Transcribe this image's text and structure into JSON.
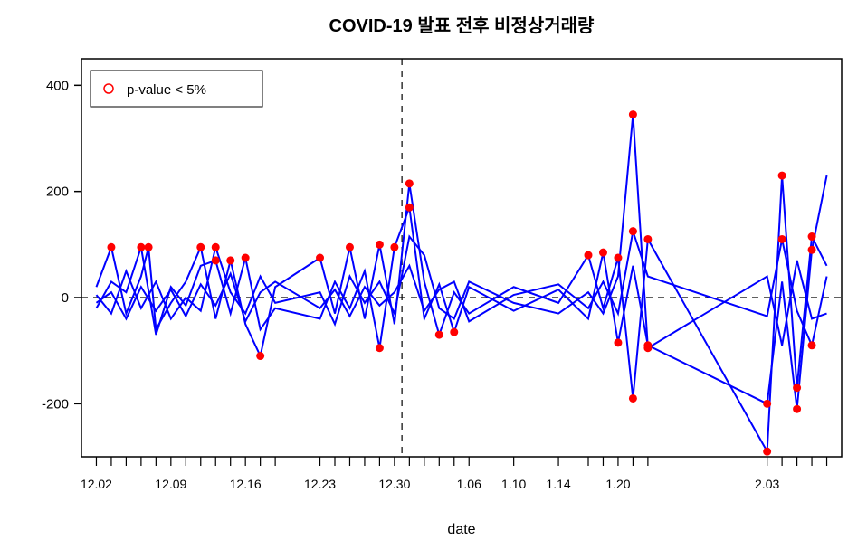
{
  "chart": {
    "type": "line",
    "title": "COVID-19 발표 전후 비정상거래량",
    "title_fontsize": 20,
    "title_fontweight": "bold",
    "xlabel": "date",
    "label_fontsize": 16,
    "background_color": "#ffffff",
    "plot_border_color": "#000000",
    "line_color": "#0000ff",
    "line_width": 2,
    "marker_color_fill": "#ff0000",
    "marker_color_stroke": "#ff0000",
    "marker_radius": 4,
    "dashed_line_color": "#000000",
    "ylim": [
      -300,
      450
    ],
    "ytick_values": [
      -200,
      0,
      200,
      400
    ],
    "x_tick_labels": [
      "12.02",
      "12.09",
      "12.16",
      "12.23",
      "12.30",
      "1.06",
      "1.10",
      "1.14",
      "1.20",
      "2.03"
    ],
    "x_tick_positions": [
      0,
      5,
      10,
      15,
      20,
      25,
      28,
      31,
      35,
      45
    ],
    "x_minor_ticks": [
      0,
      1,
      2,
      3,
      4,
      5,
      6,
      7,
      8,
      9,
      10,
      11,
      12,
      15,
      16,
      17,
      18,
      19,
      20,
      21,
      22,
      23,
      24,
      25,
      28,
      31,
      33,
      34,
      35,
      36,
      37,
      45,
      46,
      47,
      48,
      49
    ],
    "x_range": [
      -1,
      50
    ],
    "vertical_line_x": 20.5,
    "horizontal_line_y": 0,
    "legend": {
      "label": "p-value < 5%",
      "marker_type": "circle-open",
      "marker_color": "#ff0000",
      "position": "top-left",
      "fontsize": 15
    },
    "series": [
      {
        "data": [
          [
            0,
            20
          ],
          [
            1,
            95
          ],
          [
            2,
            -30
          ],
          [
            3,
            40
          ],
          [
            3.5,
            95
          ],
          [
            4,
            -60
          ],
          [
            5,
            -10
          ],
          [
            6,
            30
          ],
          [
            7,
            95
          ],
          [
            8,
            -40
          ],
          [
            9,
            70
          ],
          [
            10,
            -50
          ],
          [
            11,
            -110
          ],
          [
            12,
            20
          ],
          [
            15,
            75
          ],
          [
            16,
            -30
          ],
          [
            17,
            95
          ],
          [
            18,
            -40
          ],
          [
            19,
            100
          ],
          [
            20,
            -50
          ],
          [
            21,
            215
          ],
          [
            22,
            30
          ],
          [
            23,
            -70
          ],
          [
            24,
            10
          ],
          [
            25,
            -30
          ],
          [
            28,
            20
          ],
          [
            31,
            -10
          ],
          [
            33,
            80
          ],
          [
            34,
            -20
          ],
          [
            35,
            75
          ],
          [
            36,
            -190
          ],
          [
            37,
            110
          ],
          [
            45,
            -290
          ],
          [
            46,
            230
          ],
          [
            47,
            -170
          ],
          [
            48,
            115
          ],
          [
            49,
            60
          ]
        ]
      },
      {
        "data": [
          [
            0,
            -20
          ],
          [
            1,
            30
          ],
          [
            2,
            10
          ],
          [
            3,
            95
          ],
          [
            4,
            -70
          ],
          [
            5,
            20
          ],
          [
            6,
            -15
          ],
          [
            7,
            60
          ],
          [
            8,
            70
          ],
          [
            9,
            -30
          ],
          [
            10,
            75
          ],
          [
            11,
            -60
          ],
          [
            12,
            -20
          ],
          [
            15,
            -40
          ],
          [
            16,
            30
          ],
          [
            17,
            -20
          ],
          [
            18,
            50
          ],
          [
            19,
            -95
          ],
          [
            20,
            95
          ],
          [
            21,
            170
          ],
          [
            22,
            -40
          ],
          [
            23,
            25
          ],
          [
            24,
            -65
          ],
          [
            25,
            20
          ],
          [
            28,
            -25
          ],
          [
            31,
            15
          ],
          [
            33,
            -40
          ],
          [
            34,
            85
          ],
          [
            35,
            -85
          ],
          [
            36,
            60
          ],
          [
            37,
            -90
          ],
          [
            45,
            -200
          ],
          [
            46,
            30
          ],
          [
            47,
            -210
          ],
          [
            48,
            90
          ],
          [
            49,
            230
          ]
        ]
      },
      {
        "data": [
          [
            0,
            5
          ],
          [
            1,
            -30
          ],
          [
            2,
            50
          ],
          [
            3,
            -20
          ],
          [
            4,
            30
          ],
          [
            5,
            -40
          ],
          [
            6,
            0
          ],
          [
            7,
            -25
          ],
          [
            8,
            95
          ],
          [
            9,
            10
          ],
          [
            10,
            -30
          ],
          [
            11,
            40
          ],
          [
            12,
            -10
          ],
          [
            15,
            10
          ],
          [
            16,
            -50
          ],
          [
            17,
            40
          ],
          [
            18,
            -10
          ],
          [
            19,
            30
          ],
          [
            20,
            -30
          ],
          [
            21,
            115
          ],
          [
            22,
            80
          ],
          [
            23,
            -20
          ],
          [
            24,
            -40
          ],
          [
            25,
            30
          ],
          [
            28,
            -10
          ],
          [
            31,
            -30
          ],
          [
            33,
            10
          ],
          [
            34,
            -30
          ],
          [
            35,
            40
          ],
          [
            36,
            345
          ],
          [
            37,
            -95
          ],
          [
            45,
            40
          ],
          [
            46,
            -90
          ],
          [
            47,
            70
          ],
          [
            48,
            -40
          ],
          [
            49,
            -30
          ]
        ]
      },
      {
        "data": [
          [
            0,
            -10
          ],
          [
            1,
            10
          ],
          [
            2,
            -40
          ],
          [
            3,
            20
          ],
          [
            4,
            -25
          ],
          [
            5,
            15
          ],
          [
            6,
            -35
          ],
          [
            7,
            25
          ],
          [
            8,
            -15
          ],
          [
            9,
            45
          ],
          [
            10,
            -45
          ],
          [
            11,
            10
          ],
          [
            12,
            30
          ],
          [
            15,
            -20
          ],
          [
            16,
            15
          ],
          [
            17,
            -35
          ],
          [
            18,
            20
          ],
          [
            19,
            -15
          ],
          [
            20,
            10
          ],
          [
            21,
            60
          ],
          [
            22,
            -25
          ],
          [
            23,
            15
          ],
          [
            24,
            30
          ],
          [
            25,
            -45
          ],
          [
            28,
            5
          ],
          [
            31,
            25
          ],
          [
            33,
            -20
          ],
          [
            34,
            30
          ],
          [
            35,
            -30
          ],
          [
            36,
            125
          ],
          [
            37,
            40
          ],
          [
            45,
            -35
          ],
          [
            46,
            110
          ],
          [
            47,
            -25
          ],
          [
            48,
            -90
          ],
          [
            49,
            40
          ]
        ]
      }
    ],
    "markers": [
      [
        1,
        95
      ],
      [
        3,
        95
      ],
      [
        3.5,
        95
      ],
      [
        7,
        95
      ],
      [
        8,
        95
      ],
      [
        8,
        70
      ],
      [
        9,
        70
      ],
      [
        10,
        75
      ],
      [
        11,
        -110
      ],
      [
        15,
        75
      ],
      [
        17,
        95
      ],
      [
        19,
        100
      ],
      [
        19,
        -95
      ],
      [
        20,
        95
      ],
      [
        21,
        215
      ],
      [
        21,
        170
      ],
      [
        23,
        -70
      ],
      [
        24,
        -65
      ],
      [
        33,
        80
      ],
      [
        34,
        85
      ],
      [
        35,
        75
      ],
      [
        35,
        -85
      ],
      [
        36,
        -190
      ],
      [
        36,
        345
      ],
      [
        36,
        125
      ],
      [
        37,
        110
      ],
      [
        37,
        -95
      ],
      [
        37,
        -90
      ],
      [
        45,
        -290
      ],
      [
        45,
        -200
      ],
      [
        46,
        230
      ],
      [
        46,
        110
      ],
      [
        47,
        -210
      ],
      [
        47,
        -170
      ],
      [
        48,
        115
      ],
      [
        48,
        90
      ],
      [
        48,
        -90
      ]
    ]
  }
}
